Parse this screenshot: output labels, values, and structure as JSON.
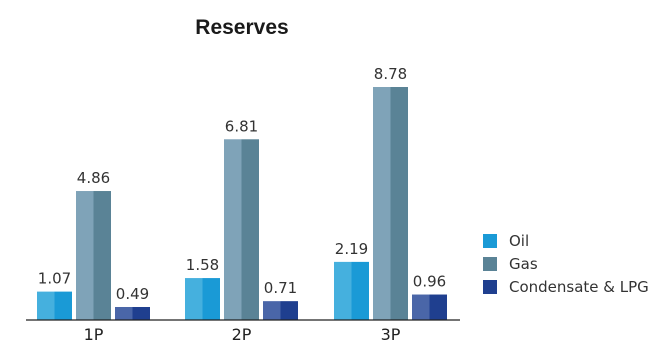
{
  "chart_data": {
    "type": "bar",
    "title": "Reserves",
    "categories": [
      "1P",
      "2P",
      "3P"
    ],
    "series": [
      {
        "name": "Oil",
        "values": [
          1.07,
          1.58,
          2.19
        ],
        "colors": [
          "#45b0de",
          "#1a9ad6"
        ]
      },
      {
        "name": "Gas",
        "values": [
          4.86,
          6.81,
          8.78
        ],
        "colors": [
          "#7fa3b8",
          "#5a8396"
        ]
      },
      {
        "name": "Condensate & LPG",
        "values": [
          0.49,
          0.71,
          0.96
        ],
        "colors": [
          "#4a66a8",
          "#1f3f8f"
        ]
      }
    ],
    "value_labels": [
      [
        "1.07",
        "1.58",
        "2.19"
      ],
      [
        "4.86",
        "6.81",
        "8.78"
      ],
      [
        "0.49",
        "0.71",
        "0.96"
      ]
    ],
    "ylim": [
      0,
      8.78
    ],
    "xlabel": "",
    "ylabel": "",
    "grid": false,
    "legend_position": "right"
  }
}
